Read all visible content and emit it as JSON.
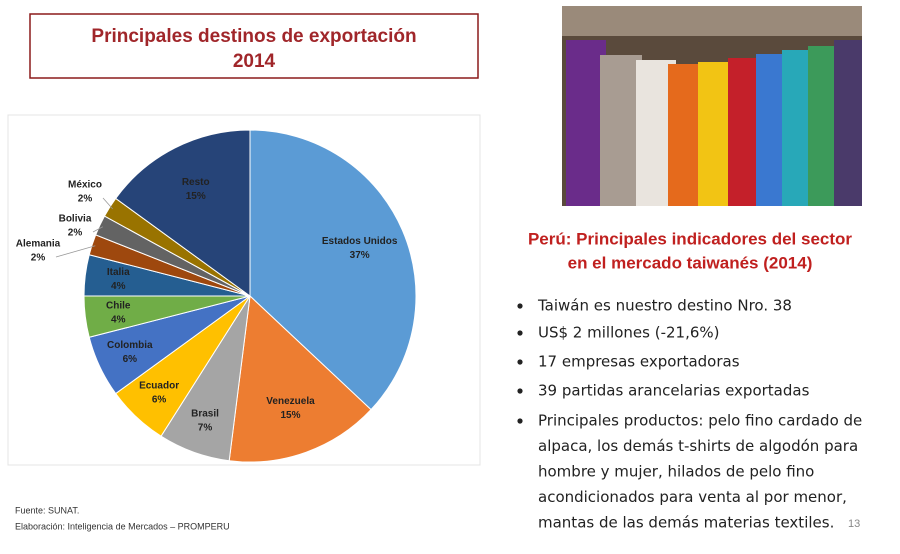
{
  "chart_data": {
    "type": "pie",
    "title": "Principales destinos de exportación",
    "subtitle": "2014",
    "categories": [
      "Estados Unidos",
      "Venezuela",
      "Brasil",
      "Ecuador",
      "Colombia",
      "Chile",
      "Italia",
      "Alemania",
      "Bolivia",
      "México",
      "Resto"
    ],
    "values": [
      37,
      15,
      7,
      6,
      6,
      4,
      4,
      2,
      2,
      2,
      15
    ],
    "value_labels": [
      "37%",
      "15%",
      "7%",
      "6%",
      "6%",
      "4%",
      "4%",
      "2%",
      "2%",
      "2%",
      "15%"
    ],
    "colors": [
      "#5b9bd5",
      "#ed7d31",
      "#a5a5a5",
      "#ffc000",
      "#4472c4",
      "#70ad47",
      "#255e91",
      "#9e480e",
      "#636363",
      "#997300",
      "#264478"
    ]
  },
  "source": "Fuente: SUNAT.",
  "credit": "Elaboración: Inteligencia de Mercados – PROMPERU",
  "heading": [
    "Perú: Principales indicadores del sector",
    "en el mercado taiwanés (2014)"
  ],
  "bullets": [
    {
      "lines": [
        "Taiwán es nuestro destino Nro. 38"
      ]
    },
    {
      "lines": [
        "US$ 2 millones (-21,6%)"
      ]
    },
    {
      "lines": [
        "17 empresas exportadoras"
      ]
    },
    {
      "lines": [
        "39 partidas arancelarias exportadas"
      ]
    },
    {
      "lines": [
        "Principales productos: pelo fino cardado de",
        "alpaca, los demás t-shirts de algodón para",
        "hombre y mujer, hilados de pelo fino",
        "acondicionados para venta al por menor,",
        "mantas de las demás materias textiles."
      ]
    }
  ],
  "page_number": "13"
}
